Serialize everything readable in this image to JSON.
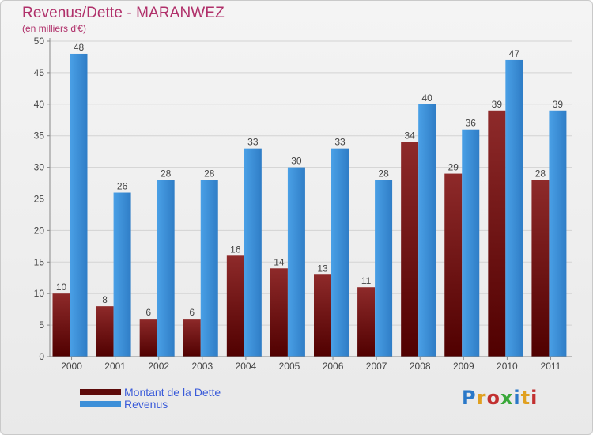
{
  "title": "Revenus/Dette - MARANWEZ",
  "subtitle": "(en milliers d'€)",
  "chart_data": {
    "type": "bar",
    "title": "Revenus/Dette - MARANWEZ",
    "subtitle": "(en milliers d'€)",
    "categories": [
      "2000",
      "2001",
      "2002",
      "2003",
      "2004",
      "2005",
      "2006",
      "2007",
      "2008",
      "2009",
      "2010",
      "2011"
    ],
    "series": [
      {
        "name": "Montant de la Dette",
        "values": [
          10,
          8,
          6,
          6,
          16,
          14,
          13,
          11,
          34,
          29,
          39,
          28
        ],
        "color": "#7a1e1e"
      },
      {
        "name": "Revenus",
        "values": [
          48,
          26,
          28,
          28,
          33,
          30,
          33,
          28,
          40,
          36,
          47,
          39
        ],
        "color": "#3d8fd8"
      }
    ],
    "ylim": [
      0,
      50
    ],
    "yticks": [
      0,
      5,
      10,
      15,
      20,
      25,
      30,
      35,
      40,
      45,
      50
    ],
    "grid": "horizontal",
    "legend_position": "bottom-left",
    "data_labels": true
  },
  "legend": {
    "items": [
      {
        "label": "Montant de la Dette",
        "color": "#5c0a0a"
      },
      {
        "label": "Revenus",
        "color": "#3d8fd8"
      }
    ]
  },
  "logo": {
    "text": "Proxiti",
    "colors": [
      "#2a78c8",
      "#e0a020",
      "#c23030",
      "#3aa83a",
      "#2a78c8",
      "#e0a020",
      "#c23030"
    ]
  }
}
